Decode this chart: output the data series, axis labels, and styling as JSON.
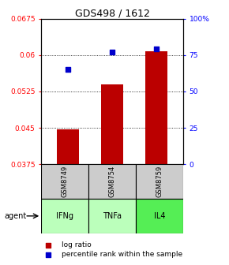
{
  "title": "GDS498 / 1612",
  "samples": [
    "GSM8749",
    "GSM8754",
    "GSM8759"
  ],
  "agents": [
    "IFNg",
    "TNFa",
    "IL4"
  ],
  "log_ratio": [
    0.0447,
    0.054,
    0.0607
  ],
  "percentile_rank": [
    65.0,
    77.0,
    79.0
  ],
  "ylim_left": [
    0.0375,
    0.0675
  ],
  "ylim_right": [
    0,
    100
  ],
  "yticks_left": [
    0.0375,
    0.045,
    0.0525,
    0.06,
    0.0675
  ],
  "ytick_labels_left": [
    "0.0375",
    "0.045",
    "0.0525",
    "0.06",
    "0.0675"
  ],
  "yticks_right": [
    0,
    25,
    50,
    75,
    100
  ],
  "ytick_labels_right": [
    "0",
    "25",
    "50",
    "75",
    "100%"
  ],
  "bar_color": "#bb0000",
  "marker_color": "#0000cc",
  "bar_width": 0.5,
  "sample_box_color": "#cccccc",
  "agent_colors": [
    "#bbffbb",
    "#bbffbb",
    "#55ee55"
  ],
  "legend_bar_label": "log ratio",
  "legend_marker_label": "percentile rank within the sample",
  "agent_label": "agent"
}
